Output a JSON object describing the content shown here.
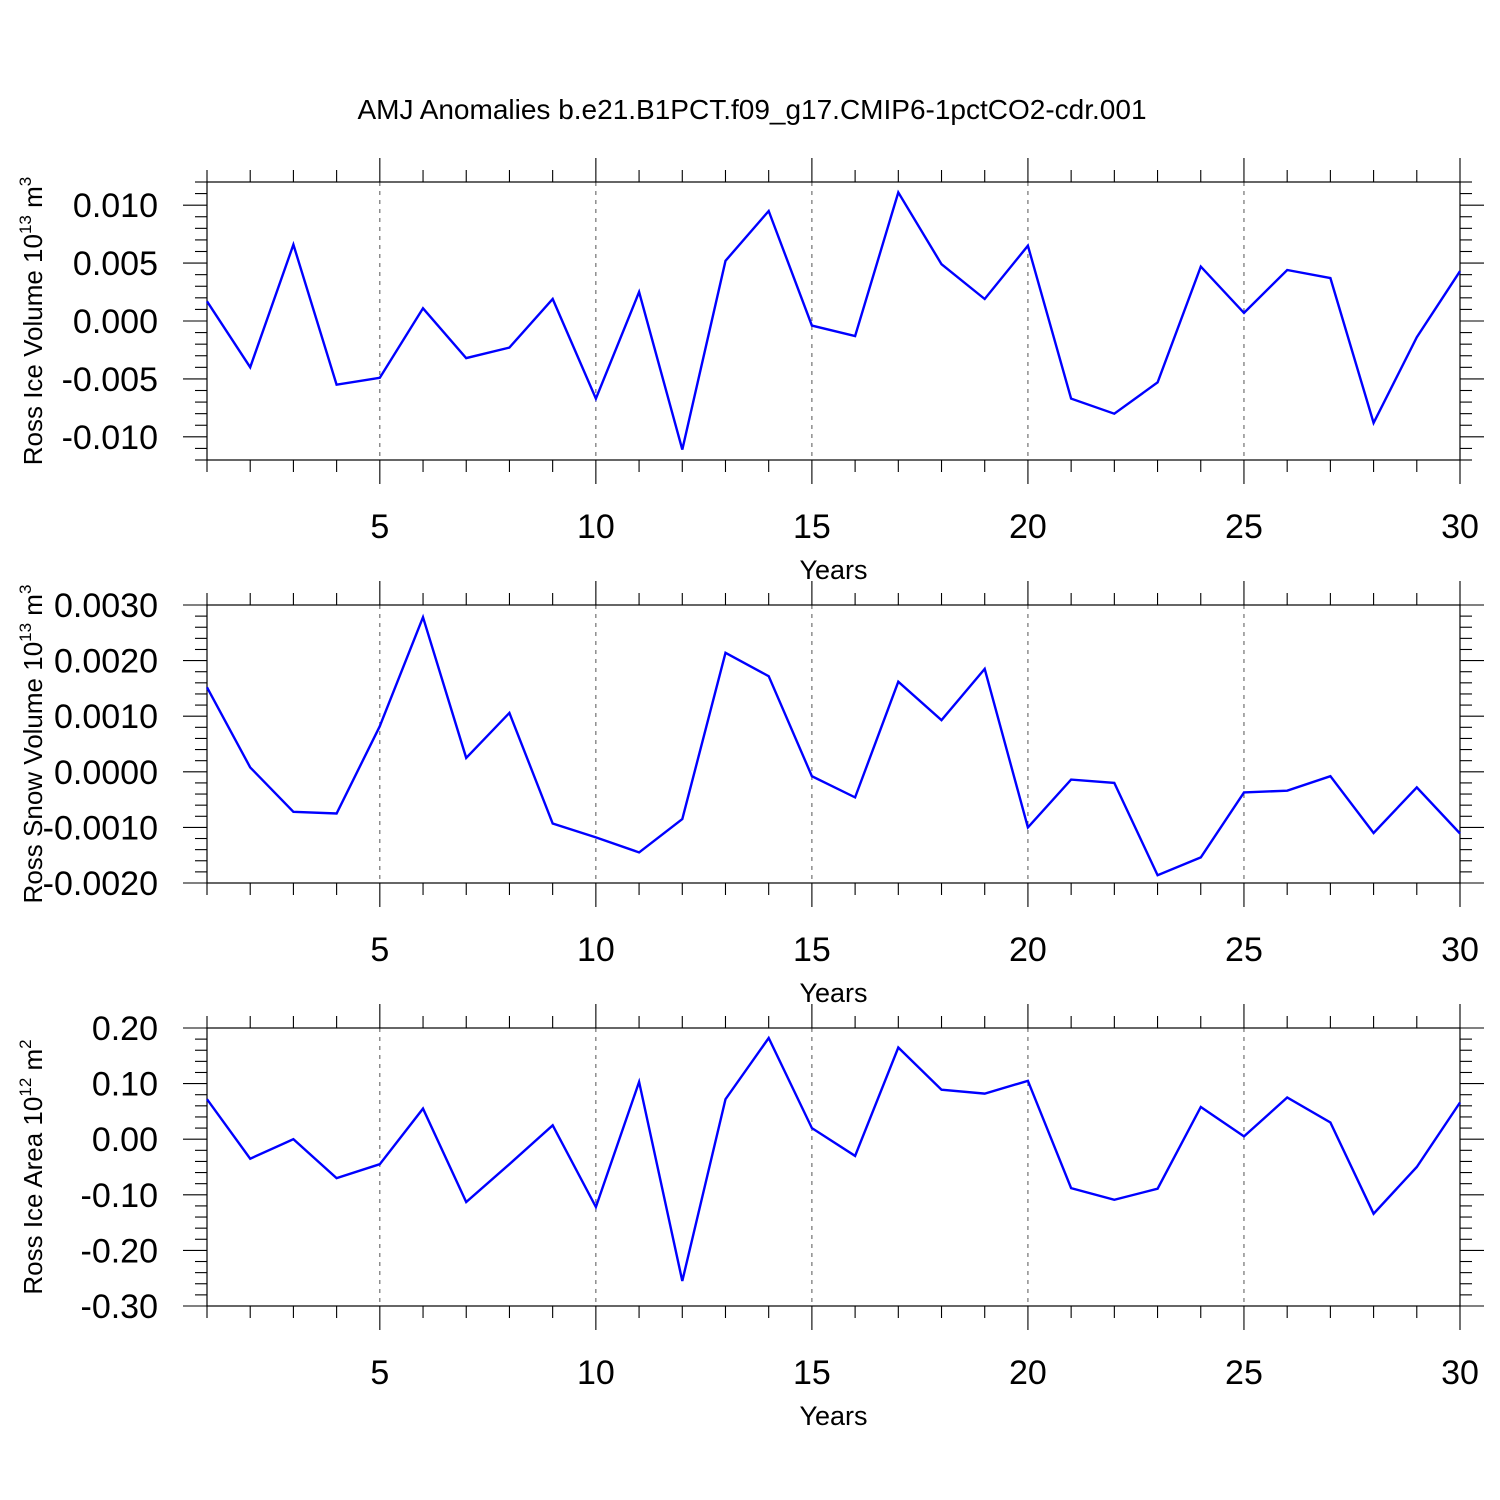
{
  "chart_data": {
    "type": "line",
    "title": "AMJ Anomalies b.e21.B1PCT.f09_g17.CMIP6-1pctCO2-cdr.001",
    "line_color": "#0000ff",
    "x": [
      1,
      2,
      3,
      4,
      5,
      6,
      7,
      8,
      9,
      10,
      11,
      12,
      13,
      14,
      15,
      16,
      17,
      18,
      19,
      20,
      21,
      22,
      23,
      24,
      25,
      26,
      27,
      28,
      29,
      30
    ],
    "xlim": [
      1,
      30
    ],
    "x_ticks": [
      5,
      10,
      15,
      20,
      25,
      30
    ],
    "x_tick_labels": [
      "5",
      "10",
      "15",
      "20",
      "25",
      "30"
    ],
    "grid": "dashed vertical lines at major x ticks",
    "panels": [
      {
        "ylabel": "Ross Ice Volume 10",
        "ylabel_exp": "13",
        "ylabel_unit": " m",
        "ylabel_unit_exp": "3",
        "xlabel": "Years",
        "ylim": [
          -0.012,
          0.012
        ],
        "y_ticks": [
          0.01,
          0.005,
          0.0,
          -0.005,
          -0.01
        ],
        "y_tick_labels": [
          "0.010",
          "0.005",
          "0.000",
          "-0.005",
          "-0.010"
        ],
        "y_minor_step": 0.001,
        "values": [
          0.0017,
          -0.004,
          0.0066,
          -0.0055,
          -0.0049,
          0.0011,
          -0.0032,
          -0.0023,
          0.0019,
          -0.0067,
          0.0025,
          -0.0111,
          0.0052,
          0.0095,
          -0.0004,
          -0.0013,
          0.0111,
          0.0049,
          0.0019,
          0.0065,
          -0.0067,
          -0.008,
          -0.0053,
          0.0047,
          0.0007,
          0.0044,
          0.0037,
          -0.0088,
          -0.0014,
          0.0043
        ]
      },
      {
        "ylabel": "Ross Snow Volume 10",
        "ylabel_exp": "13",
        "ylabel_unit": " m",
        "ylabel_unit_exp": "3",
        "xlabel": "Years",
        "ylim": [
          -0.002,
          0.003
        ],
        "y_ticks": [
          0.003,
          0.002,
          0.001,
          0.0,
          -0.001,
          -0.002
        ],
        "y_tick_labels": [
          "0.0030",
          "0.0020",
          "0.0010",
          "0.0000",
          "-0.0010",
          "-0.0020"
        ],
        "y_minor_step": 0.0002,
        "values": [
          0.00152,
          8e-05,
          -0.00072,
          -0.00075,
          0.00082,
          0.00278,
          0.00025,
          0.00106,
          -0.00093,
          -0.00118,
          -0.00145,
          -0.00085,
          0.00214,
          0.00172,
          -8e-05,
          -0.00046,
          0.00162,
          0.00093,
          0.00185,
          -0.001,
          -0.00014,
          -0.0002,
          -0.00186,
          -0.00154,
          -0.00037,
          -0.00034,
          -8e-05,
          -0.0011,
          -0.00028,
          -0.00111
        ]
      },
      {
        "ylabel": "Ross Ice Area 10",
        "ylabel_exp": "12",
        "ylabel_unit": " m",
        "ylabel_unit_exp": "2",
        "xlabel": "Years",
        "ylim": [
          -0.3,
          0.2
        ],
        "y_ticks": [
          0.2,
          0.1,
          0.0,
          -0.1,
          -0.2,
          -0.3
        ],
        "y_tick_labels": [
          "0.20",
          "0.10",
          "0.00",
          "-0.10",
          "-0.20",
          "-0.30"
        ],
        "y_minor_step": 0.02,
        "values": [
          0.072,
          -0.035,
          0.0,
          -0.07,
          -0.045,
          0.055,
          -0.113,
          -0.045,
          0.025,
          -0.122,
          0.103,
          -0.255,
          0.072,
          0.182,
          0.02,
          -0.03,
          0.165,
          0.089,
          0.082,
          0.105,
          -0.088,
          -0.109,
          -0.089,
          0.058,
          0.005,
          0.075,
          0.03,
          -0.134,
          -0.05,
          0.066
        ]
      }
    ]
  }
}
